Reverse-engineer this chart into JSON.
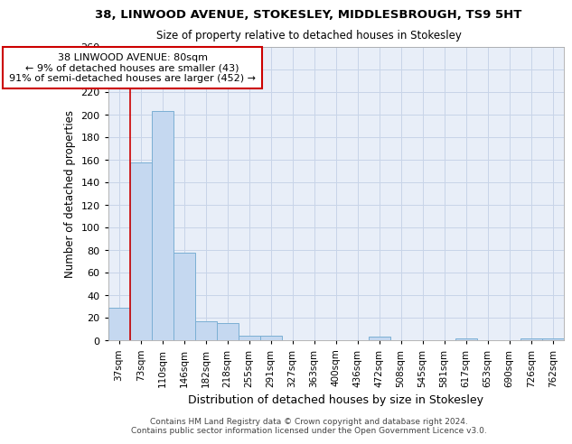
{
  "title1": "38, LINWOOD AVENUE, STOKESLEY, MIDDLESBROUGH, TS9 5HT",
  "title2": "Size of property relative to detached houses in Stokesley",
  "xlabel": "Distribution of detached houses by size in Stokesley",
  "ylabel": "Number of detached properties",
  "footnote1": "Contains HM Land Registry data © Crown copyright and database right 2024.",
  "footnote2": "Contains public sector information licensed under the Open Government Licence v3.0.",
  "bin_labels": [
    "37sqm",
    "73sqm",
    "110sqm",
    "146sqm",
    "182sqm",
    "218sqm",
    "255sqm",
    "291sqm",
    "327sqm",
    "363sqm",
    "400sqm",
    "436sqm",
    "472sqm",
    "508sqm",
    "545sqm",
    "581sqm",
    "617sqm",
    "653sqm",
    "690sqm",
    "726sqm",
    "762sqm"
  ],
  "bar_values": [
    29,
    158,
    203,
    78,
    17,
    15,
    4,
    4,
    0,
    0,
    0,
    0,
    3,
    0,
    0,
    0,
    2,
    0,
    0,
    2,
    2
  ],
  "bar_color": "#c5d8f0",
  "bar_edge_color": "#7bafd4",
  "red_line_color": "#cc0000",
  "annotation_line1": "38 LINWOOD AVENUE: 80sqm",
  "annotation_line2": "← 9% of detached houses are smaller (43)",
  "annotation_line3": "91% of semi-detached houses are larger (452) →",
  "annotation_box_color": "#ffffff",
  "annotation_box_edge": "#cc0000",
  "ylim": [
    0,
    260
  ],
  "yticks": [
    0,
    20,
    40,
    60,
    80,
    100,
    120,
    140,
    160,
    180,
    200,
    220,
    240,
    260
  ],
  "grid_color": "#c8d4e8",
  "background_color": "#e8eef8"
}
